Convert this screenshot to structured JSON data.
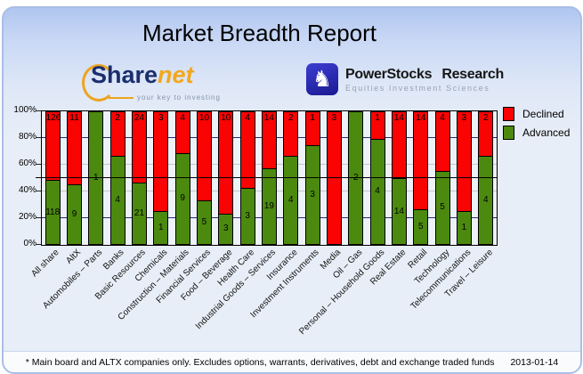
{
  "title": "Market Breadth Report",
  "logos": {
    "sharenet": {
      "name_part1": "Share",
      "name_part2": "net",
      "tagline": "your key to investing",
      "accent_color": "#eda41d",
      "name_color": "#1b2e6d"
    },
    "powerstocks": {
      "name": "PowerStocks Research",
      "tagline": "Equities Investment Sciences",
      "icon": "knight-icon",
      "icon_glyph": "♞",
      "square_color": "#2525a8"
    }
  },
  "legend": [
    {
      "label": "Declined",
      "color": "#fa0303"
    },
    {
      "label": "Advanced",
      "color": "#4b8a0e"
    }
  ],
  "chart_data": {
    "type": "bar",
    "stacked": true,
    "orientation": "vertical",
    "title": "Market Breadth Report",
    "categories": [
      "All share",
      "AltX",
      "Automobiles – Parts",
      "Banks",
      "Basic Resources",
      "Chemicals",
      "Construction – Materials",
      "Financial Services",
      "Food – Beverage",
      "Health Care",
      "Industrial Goods – Services",
      "Insurance",
      "Investment Instruments",
      "Media",
      "Oil – Gas",
      "Personal – Household Goods",
      "Real Estate",
      "Retail",
      "Technology",
      "Telecommunications",
      "Travel – Leisure"
    ],
    "series": [
      {
        "name": "Declined",
        "color": "#fa0303",
        "values": [
          126,
          11,
          0,
          2,
          24,
          3,
          4,
          10,
          10,
          4,
          14,
          2,
          1,
          3,
          0,
          1,
          14,
          14,
          4,
          3,
          2
        ]
      },
      {
        "name": "Advanced",
        "color": "#4b8a0e",
        "values": [
          118,
          9,
          1,
          4,
          21,
          1,
          9,
          5,
          3,
          3,
          19,
          4,
          3,
          0,
          2,
          4,
          14,
          5,
          5,
          1,
          4
        ]
      }
    ],
    "value_format": "bars normalized to 100% of total; labels show company counts",
    "y_ticks": [
      "0%",
      "20%",
      "40%",
      "60%",
      "80%",
      "100%"
    ],
    "ylim": [
      0,
      100
    ],
    "midline": 50,
    "gridlines": {
      "20%": "navy",
      "40%": "silver",
      "60%": "silver",
      "80%": "navy",
      "50%": "black"
    },
    "legend_position": "right",
    "plot_background": "#edf2f9"
  },
  "footer": {
    "note": "* Main board and ALTX companies only. Excludes options, warrants, derivatives, debt and exchange traded funds",
    "date": "2013-01-14"
  }
}
